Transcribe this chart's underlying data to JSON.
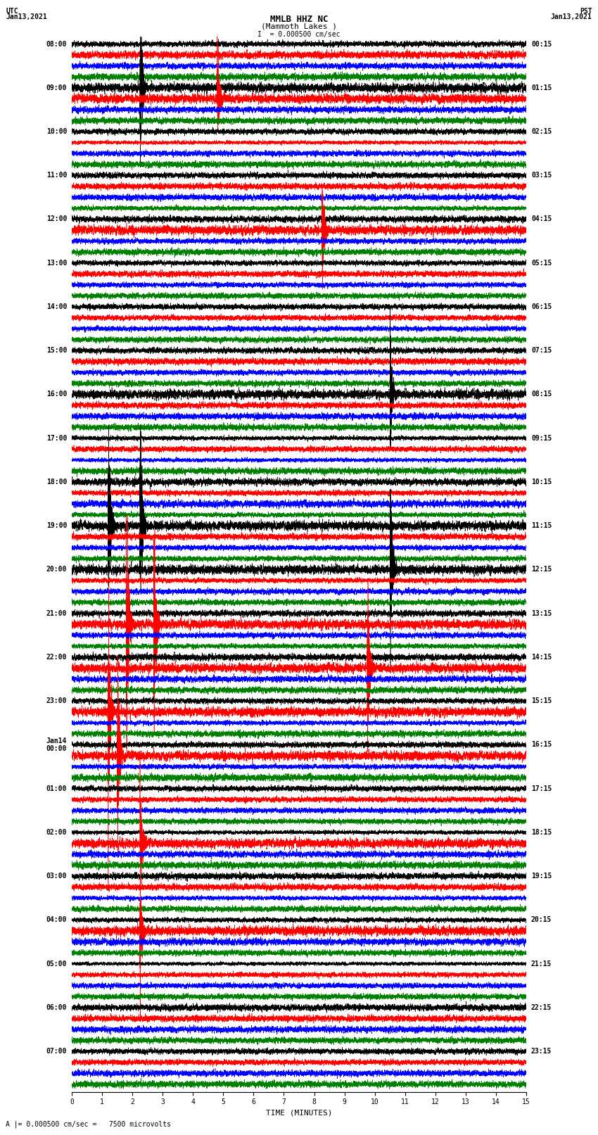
{
  "title_line1": "MMLB HHZ NC",
  "title_line2": "(Mammoth Lakes )",
  "scale_label": "I  = 0.000500 cm/sec",
  "bottom_label": "= 0.000500 cm/sec =   7500 microvolts",
  "xlabel": "TIME (MINUTES)",
  "left_header_line1": "UTC",
  "left_header_line2": "Jan13,2021",
  "right_header_line1": "PST",
  "right_header_line2": "Jan13,2021",
  "utc_times": [
    "08:00",
    "09:00",
    "10:00",
    "11:00",
    "12:00",
    "13:00",
    "14:00",
    "15:00",
    "16:00",
    "17:00",
    "18:00",
    "19:00",
    "20:00",
    "21:00",
    "22:00",
    "23:00",
    "Jan14\n00:00",
    "01:00",
    "02:00",
    "03:00",
    "04:00",
    "05:00",
    "06:00",
    "07:00"
  ],
  "pst_times": [
    "00:15",
    "01:15",
    "02:15",
    "03:15",
    "04:15",
    "05:15",
    "06:15",
    "07:15",
    "08:15",
    "09:15",
    "10:15",
    "11:15",
    "12:15",
    "13:15",
    "14:15",
    "15:15",
    "16:15",
    "17:15",
    "18:15",
    "19:15",
    "20:15",
    "21:15",
    "22:15",
    "23:15"
  ],
  "n_rows": 96,
  "n_minutes": 15,
  "sample_rate": 50,
  "colors_cycle": [
    "black",
    "red",
    "blue",
    "green"
  ],
  "bg_color": "white",
  "trace_amplitude": 0.38,
  "font_size_title": 9,
  "font_size_labels": 7,
  "font_size_ticks": 7
}
